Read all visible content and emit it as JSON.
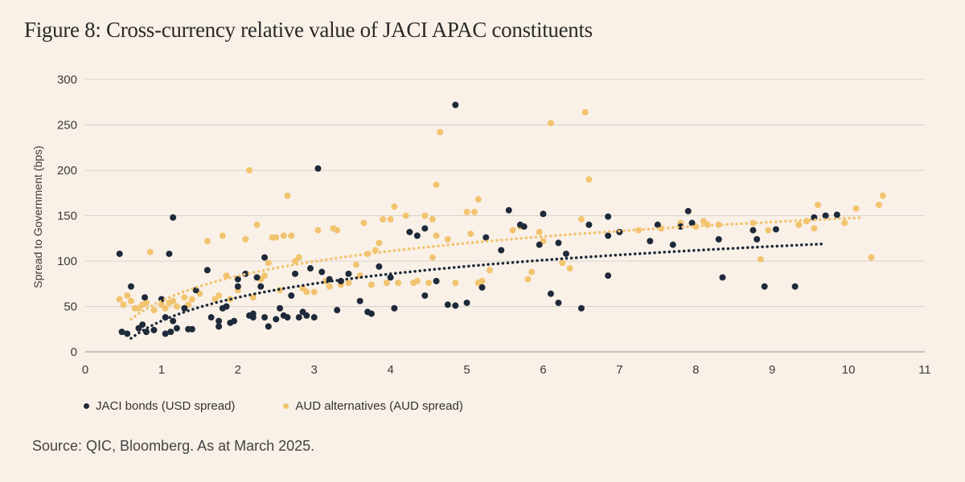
{
  "title": "Figure 8: Cross-currency relative value of JACI APAC constituents",
  "source": "Source: QIC, Bloomberg. As at March 2025.",
  "colors": {
    "usd": "#1e2a3a",
    "aud": "#f2c46f",
    "grid": "#d9d2ca",
    "axis": "#9a948c"
  },
  "chart_data": {
    "type": "scatter",
    "title": "Figure 8: Cross-currency relative value of JACI APAC constituents",
    "xlabel": "",
    "ylabel": "Spread to Government (bps)",
    "xlim": [
      0,
      11
    ],
    "ylim": [
      0,
      300
    ],
    "xticks": [
      0,
      1,
      2,
      3,
      4,
      5,
      6,
      7,
      8,
      9,
      10,
      11
    ],
    "yticks": [
      0,
      50,
      100,
      150,
      200,
      250,
      300
    ],
    "legend_position": "bottom-left",
    "series": [
      {
        "name": "JACI bonds (USD spread)",
        "color": "#1e2a3a",
        "trendline": {
          "type": "logarithmic",
          "x_start": 0.6,
          "x_end": 9.7,
          "y_start": 15,
          "y_end": 119
        },
        "points": [
          [
            0.45,
            108
          ],
          [
            0.48,
            22
          ],
          [
            0.55,
            20
          ],
          [
            0.6,
            72
          ],
          [
            0.7,
            26
          ],
          [
            0.75,
            30
          ],
          [
            0.78,
            60
          ],
          [
            0.8,
            22
          ],
          [
            0.9,
            24
          ],
          [
            1.0,
            58
          ],
          [
            1.05,
            38
          ],
          [
            1.05,
            20
          ],
          [
            1.1,
            108
          ],
          [
            1.12,
            22
          ],
          [
            1.15,
            34
          ],
          [
            1.15,
            148
          ],
          [
            1.2,
            26
          ],
          [
            1.3,
            48
          ],
          [
            1.35,
            25
          ],
          [
            1.4,
            25
          ],
          [
            1.45,
            68
          ],
          [
            1.6,
            90
          ],
          [
            1.65,
            38
          ],
          [
            1.75,
            28
          ],
          [
            1.75,
            34
          ],
          [
            1.8,
            48
          ],
          [
            1.85,
            50
          ],
          [
            1.9,
            32
          ],
          [
            1.95,
            34
          ],
          [
            2.0,
            80
          ],
          [
            2.0,
            72
          ],
          [
            2.1,
            86
          ],
          [
            2.15,
            40
          ],
          [
            2.2,
            38
          ],
          [
            2.2,
            42
          ],
          [
            2.25,
            82
          ],
          [
            2.3,
            72
          ],
          [
            2.35,
            38
          ],
          [
            2.35,
            104
          ],
          [
            2.4,
            28
          ],
          [
            2.5,
            36
          ],
          [
            2.55,
            48
          ],
          [
            2.6,
            40
          ],
          [
            2.65,
            38
          ],
          [
            2.7,
            62
          ],
          [
            2.75,
            86
          ],
          [
            2.8,
            38
          ],
          [
            2.85,
            44
          ],
          [
            2.9,
            40
          ],
          [
            2.95,
            92
          ],
          [
            3.0,
            38
          ],
          [
            3.05,
            202
          ],
          [
            3.1,
            88
          ],
          [
            3.2,
            80
          ],
          [
            3.3,
            46
          ],
          [
            3.35,
            78
          ],
          [
            3.45,
            86
          ],
          [
            3.6,
            56
          ],
          [
            3.7,
            44
          ],
          [
            3.75,
            42
          ],
          [
            3.85,
            94
          ],
          [
            4.0,
            82
          ],
          [
            4.05,
            48
          ],
          [
            4.25,
            132
          ],
          [
            4.35,
            128
          ],
          [
            4.45,
            136
          ],
          [
            4.45,
            62
          ],
          [
            4.6,
            78
          ],
          [
            4.75,
            52
          ],
          [
            4.85,
            51
          ],
          [
            4.85,
            272
          ],
          [
            5.0,
            54
          ],
          [
            5.2,
            71
          ],
          [
            5.25,
            126
          ],
          [
            5.45,
            112
          ],
          [
            5.55,
            156
          ],
          [
            5.7,
            140
          ],
          [
            5.75,
            138
          ],
          [
            5.95,
            118
          ],
          [
            6.0,
            152
          ],
          [
            6.1,
            64
          ],
          [
            6.2,
            120
          ],
          [
            6.2,
            54
          ],
          [
            6.3,
            108
          ],
          [
            6.5,
            48
          ],
          [
            6.6,
            140
          ],
          [
            6.85,
            149
          ],
          [
            6.85,
            84
          ],
          [
            6.85,
            128
          ],
          [
            7.0,
            132
          ],
          [
            7.4,
            122
          ],
          [
            7.5,
            140
          ],
          [
            7.7,
            118
          ],
          [
            7.8,
            138
          ],
          [
            7.9,
            155
          ],
          [
            7.95,
            142
          ],
          [
            8.3,
            124
          ],
          [
            8.35,
            82
          ],
          [
            8.75,
            134
          ],
          [
            8.8,
            124
          ],
          [
            8.9,
            72
          ],
          [
            9.05,
            135
          ],
          [
            9.3,
            72
          ],
          [
            9.55,
            148
          ],
          [
            9.7,
            150
          ],
          [
            9.85,
            151
          ]
        ]
      },
      {
        "name": "AUD alternatives (AUD spread)",
        "color": "#f2c46f",
        "trendline": {
          "type": "logarithmic",
          "x_start": 0.6,
          "x_end": 10.2,
          "y_start": 36,
          "y_end": 148
        },
        "points": [
          [
            0.45,
            58
          ],
          [
            0.5,
            52
          ],
          [
            0.55,
            62
          ],
          [
            0.6,
            56
          ],
          [
            0.65,
            48
          ],
          [
            0.7,
            48
          ],
          [
            0.75,
            52
          ],
          [
            0.8,
            54
          ],
          [
            0.85,
            110
          ],
          [
            0.9,
            46
          ],
          [
            1.0,
            52
          ],
          [
            1.05,
            48
          ],
          [
            1.1,
            54
          ],
          [
            1.15,
            56
          ],
          [
            1.2,
            50
          ],
          [
            1.3,
            60
          ],
          [
            1.35,
            52
          ],
          [
            1.4,
            58
          ],
          [
            1.5,
            64
          ],
          [
            1.6,
            122
          ],
          [
            1.7,
            58
          ],
          [
            1.75,
            62
          ],
          [
            1.8,
            128
          ],
          [
            1.85,
            84
          ],
          [
            1.9,
            58
          ],
          [
            2.0,
            68
          ],
          [
            2.1,
            124
          ],
          [
            2.15,
            200
          ],
          [
            2.2,
            60
          ],
          [
            2.25,
            140
          ],
          [
            2.3,
            80
          ],
          [
            2.35,
            84
          ],
          [
            2.4,
            98
          ],
          [
            2.45,
            126
          ],
          [
            2.5,
            126
          ],
          [
            2.55,
            68
          ],
          [
            2.6,
            128
          ],
          [
            2.65,
            172
          ],
          [
            2.7,
            128
          ],
          [
            2.75,
            100
          ],
          [
            2.8,
            104
          ],
          [
            2.85,
            70
          ],
          [
            2.9,
            66
          ],
          [
            3.0,
            66
          ],
          [
            3.05,
            134
          ],
          [
            3.15,
            78
          ],
          [
            3.2,
            72
          ],
          [
            3.25,
            136
          ],
          [
            3.3,
            134
          ],
          [
            3.35,
            74
          ],
          [
            3.45,
            76
          ],
          [
            3.55,
            96
          ],
          [
            3.6,
            84
          ],
          [
            3.65,
            142
          ],
          [
            3.7,
            108
          ],
          [
            3.75,
            74
          ],
          [
            3.8,
            112
          ],
          [
            3.85,
            120
          ],
          [
            3.9,
            146
          ],
          [
            3.95,
            76
          ],
          [
            4.0,
            146
          ],
          [
            4.05,
            160
          ],
          [
            4.1,
            76
          ],
          [
            4.2,
            150
          ],
          [
            4.3,
            76
          ],
          [
            4.35,
            78
          ],
          [
            4.45,
            150
          ],
          [
            4.5,
            76
          ],
          [
            4.55,
            104
          ],
          [
            4.55,
            146
          ],
          [
            4.6,
            184
          ],
          [
            4.6,
            128
          ],
          [
            4.65,
            242
          ],
          [
            4.75,
            124
          ],
          [
            4.85,
            76
          ],
          [
            5.0,
            154
          ],
          [
            5.05,
            130
          ],
          [
            5.1,
            154
          ],
          [
            5.15,
            168
          ],
          [
            5.15,
            76
          ],
          [
            5.2,
            78
          ],
          [
            5.3,
            90
          ],
          [
            5.6,
            134
          ],
          [
            5.7,
            138
          ],
          [
            5.8,
            80
          ],
          [
            5.85,
            88
          ],
          [
            5.95,
            132
          ],
          [
            6.0,
            122
          ],
          [
            6.1,
            252
          ],
          [
            6.25,
            98
          ],
          [
            6.35,
            92
          ],
          [
            6.5,
            146
          ],
          [
            6.55,
            264
          ],
          [
            6.6,
            190
          ],
          [
            7.25,
            134
          ],
          [
            7.55,
            136
          ],
          [
            7.8,
            142
          ],
          [
            8.0,
            138
          ],
          [
            8.1,
            144
          ],
          [
            8.15,
            140
          ],
          [
            8.3,
            140
          ],
          [
            8.75,
            142
          ],
          [
            8.85,
            102
          ],
          [
            8.95,
            134
          ],
          [
            9.35,
            140
          ],
          [
            9.45,
            144
          ],
          [
            9.55,
            136
          ],
          [
            9.6,
            162
          ],
          [
            9.95,
            142
          ],
          [
            10.1,
            158
          ],
          [
            10.3,
            104
          ],
          [
            10.4,
            162
          ],
          [
            10.45,
            172
          ]
        ]
      }
    ]
  }
}
